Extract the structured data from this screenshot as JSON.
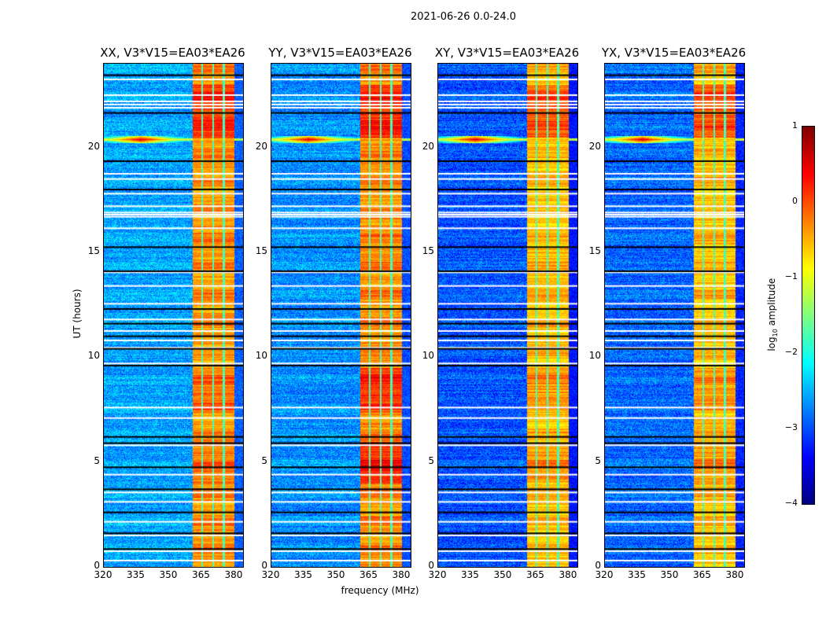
{
  "chart_data": {
    "type": "heatmap",
    "title": "2021-06-26 0.0-24.0",
    "xlabel": "frequency (MHz)",
    "ylabel": "UT (hours)",
    "xlim": [
      320,
      384
    ],
    "ylim": [
      0,
      24
    ],
    "x_ticks": [
      "320",
      "335",
      "350",
      "365",
      "380"
    ],
    "x_tick_values": [
      320,
      335,
      350,
      365,
      380
    ],
    "y_ticks": [
      "0",
      "5",
      "10",
      "15",
      "20"
    ],
    "y_tick_values": [
      0,
      5,
      10,
      15,
      20
    ],
    "panels": [
      {
        "title": "XX, V3*V15=EA03*EA26",
        "background_log_amp": -2.6,
        "band_log_amp": -0.4
      },
      {
        "title": "YY, V3*V15=EA03*EA26",
        "background_log_amp": -2.7,
        "band_log_amp": -0.35
      },
      {
        "title": "XY, V3*V15=EA03*EA26",
        "background_log_amp": -3.0,
        "band_log_amp": -0.6
      },
      {
        "title": "YX, V3*V15=EA03*EA26",
        "background_log_amp": -2.9,
        "band_log_amp": -0.6
      }
    ],
    "rfi_band_mhz": [
      360.5,
      380
    ],
    "rfi_subband_gaps_mhz": [
      365,
      370,
      375
    ],
    "rfi_event": {
      "time_hours": 20.4,
      "freq_mhz": 337,
      "log_amp": 0.6
    },
    "flagged_white_hours": [
      23.25,
      22.5,
      22.2,
      22.05,
      21.9,
      18.75,
      18.5,
      17.8,
      17.2,
      16.9,
      16.8,
      16.7,
      16.15,
      14.05,
      13.4,
      12.55,
      11.8,
      11.25,
      10.8,
      10.45,
      9.7,
      7.6,
      7.1,
      5.8,
      4.4,
      3.55,
      3.1,
      2.15,
      1.5,
      0.75,
      0.3
    ],
    "flagged_black_hours": [
      23.45,
      21.65,
      19.35,
      18.0,
      15.25,
      14.1,
      12.3,
      11.6,
      11.0,
      10.4,
      9.6,
      6.2,
      5.9,
      4.75,
      3.7,
      2.6,
      1.6,
      0.85
    ],
    "colorbar": {
      "label": "log10 amplitude",
      "label_base": "log",
      "label_sub": "10",
      "label_rest": " amplitude",
      "range": [
        -4,
        1
      ],
      "ticks": [
        "1",
        "0",
        "−1",
        "−2",
        "−3",
        "−4"
      ],
      "tick_values": [
        1,
        0,
        -1,
        -2,
        -3,
        -4
      ],
      "colormap": "jet"
    }
  }
}
